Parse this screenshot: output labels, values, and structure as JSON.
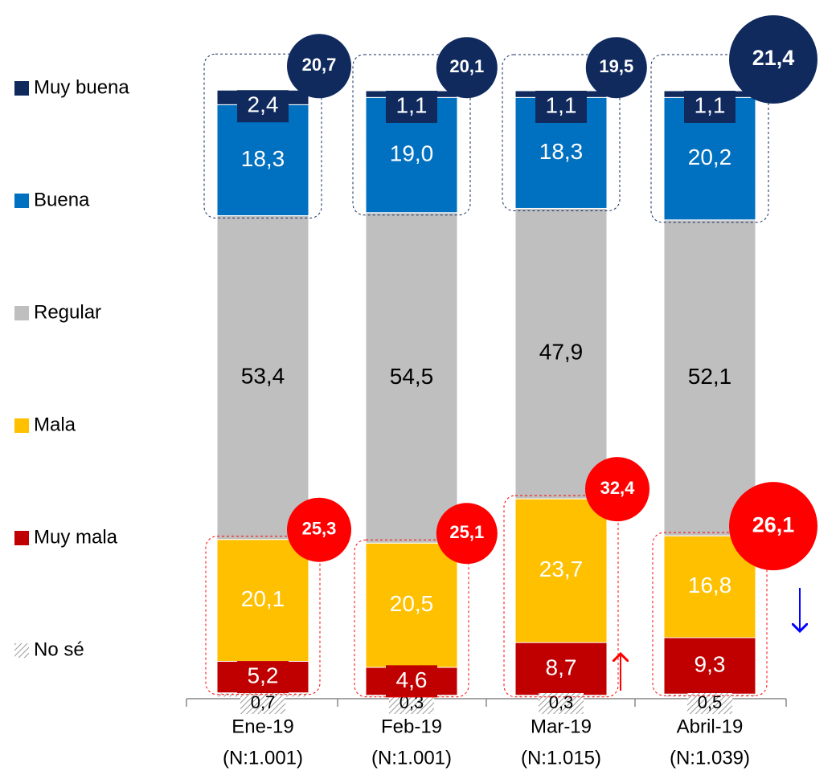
{
  "chart_data": {
    "type": "stacked_bar",
    "categories": [
      "Ene-19",
      "Feb-19",
      "Mar-19",
      "Abril-19"
    ],
    "category_notes": [
      "(N:1.001)",
      "(N:1.001)",
      "(N:1.015)",
      "(N:1.039)"
    ],
    "series": [
      {
        "name": "No sé",
        "color": "#bfbfbf",
        "hatched": true,
        "values": [
          0.7,
          0.3,
          0.3,
          0.5
        ],
        "value_labels": [
          "0,7",
          "0,3",
          "0,3",
          "0,5"
        ]
      },
      {
        "name": "Muy mala",
        "color": "#c00000",
        "values": [
          5.2,
          4.6,
          8.7,
          9.3
        ],
        "value_labels": [
          "5,2",
          "4,6",
          "8,7",
          "9,3"
        ]
      },
      {
        "name": "Mala",
        "color": "#ffc000",
        "values": [
          20.1,
          20.5,
          23.7,
          16.8
        ],
        "value_labels": [
          "20,1",
          "20,5",
          "23,7",
          "16,8"
        ]
      },
      {
        "name": "Regular",
        "color": "#bfbfbf",
        "values": [
          53.4,
          54.5,
          47.9,
          52.1
        ],
        "value_labels": [
          "53,4",
          "54,5",
          "47,9",
          "52,1"
        ]
      },
      {
        "name": "Buena",
        "color": "#0070c0",
        "values": [
          18.3,
          19.0,
          18.3,
          20.2
        ],
        "value_labels": [
          "18,3",
          "19,0",
          "18,3",
          "20,2"
        ]
      },
      {
        "name": "Muy buena",
        "color": "#102a5e",
        "values": [
          2.4,
          1.1,
          1.1,
          1.1
        ],
        "value_labels": [
          "2,4",
          "1,1",
          "1,1",
          "1,1"
        ]
      }
    ],
    "positive_totals": {
      "color": "#102a5e",
      "values": [
        20.7,
        20.1,
        19.5,
        21.4
      ],
      "value_labels": [
        "20,7",
        "20,1",
        "19,5",
        "21,4"
      ]
    },
    "negative_totals": {
      "color": "#ff0000",
      "values": [
        25.3,
        25.1,
        32.4,
        26.1
      ],
      "value_labels": [
        "25,3",
        "25,1",
        "32,4",
        "26,1"
      ]
    }
  }
}
